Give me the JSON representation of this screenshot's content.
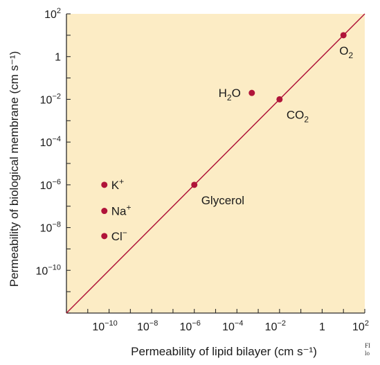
{
  "chart_data": {
    "type": "scatter",
    "xlabel": "Permeability of lipid bilayer (cm s⁻¹)",
    "ylabel": "Permeability of biological membrane (cm s⁻¹)",
    "x_scale": "log",
    "y_scale": "log",
    "xlim": [
      1e-12,
      100
    ],
    "ylim": [
      1e-12,
      100
    ],
    "x_ticks": [
      {
        "value": 1e-10,
        "base": "10",
        "exp": "−10"
      },
      {
        "value": 1e-08,
        "base": "10",
        "exp": "−8"
      },
      {
        "value": 1e-06,
        "base": "10",
        "exp": "−6"
      },
      {
        "value": 0.0001,
        "base": "10",
        "exp": "−4"
      },
      {
        "value": 0.01,
        "base": "10",
        "exp": "−2"
      },
      {
        "value": 1,
        "base": "1",
        "exp": ""
      },
      {
        "value": 100,
        "base": "10",
        "exp": "2"
      }
    ],
    "y_ticks": [
      {
        "value": 100,
        "base": "10",
        "exp": "2"
      },
      {
        "value": 1,
        "base": "1",
        "exp": ""
      },
      {
        "value": 0.01,
        "base": "10",
        "exp": "−2"
      },
      {
        "value": 0.0001,
        "base": "10",
        "exp": "−4"
      },
      {
        "value": 1e-06,
        "base": "10",
        "exp": "−6"
      },
      {
        "value": 1e-08,
        "base": "10",
        "exp": "−8"
      },
      {
        "value": 1e-10,
        "base": "10",
        "exp": "−10"
      }
    ],
    "reference_line": {
      "from": [
        1e-12,
        1e-12
      ],
      "to": [
        100,
        100
      ]
    },
    "points": [
      {
        "id": "o2",
        "text": "O",
        "sub": "2",
        "sup": "",
        "x": 10,
        "y": 10,
        "label_side": "below"
      },
      {
        "id": "h2o",
        "text": "H",
        "sub": "2",
        "text2": "O",
        "sup": "",
        "x": 0.0005,
        "y": 0.02,
        "label_side": "left"
      },
      {
        "id": "co2",
        "text": "CO",
        "sub": "2",
        "sup": "",
        "x": 0.01,
        "y": 0.01,
        "label_side": "below-right"
      },
      {
        "id": "glycerol",
        "text": "Glycerol",
        "sub": "",
        "sup": "",
        "x": 1e-06,
        "y": 1e-06,
        "label_side": "below-right"
      },
      {
        "id": "k",
        "text": "K",
        "sub": "",
        "sup": "+",
        "x": 6e-11,
        "y": 1e-06,
        "label_side": "right"
      },
      {
        "id": "na",
        "text": "Na",
        "sub": "",
        "sup": "+",
        "x": 6e-11,
        "y": 6e-08,
        "label_side": "right"
      },
      {
        "id": "cl",
        "text": "Cl",
        "sub": "",
        "sup": "−",
        "x": 6e-11,
        "y": 4e-09,
        "label_side": "right"
      }
    ],
    "grid": false,
    "legend": "none"
  },
  "colors": {
    "plot_background": "#fcecc5",
    "marker": "#b0143a",
    "line": "#b0143a"
  },
  "caption_fragment": "FI\nlo"
}
